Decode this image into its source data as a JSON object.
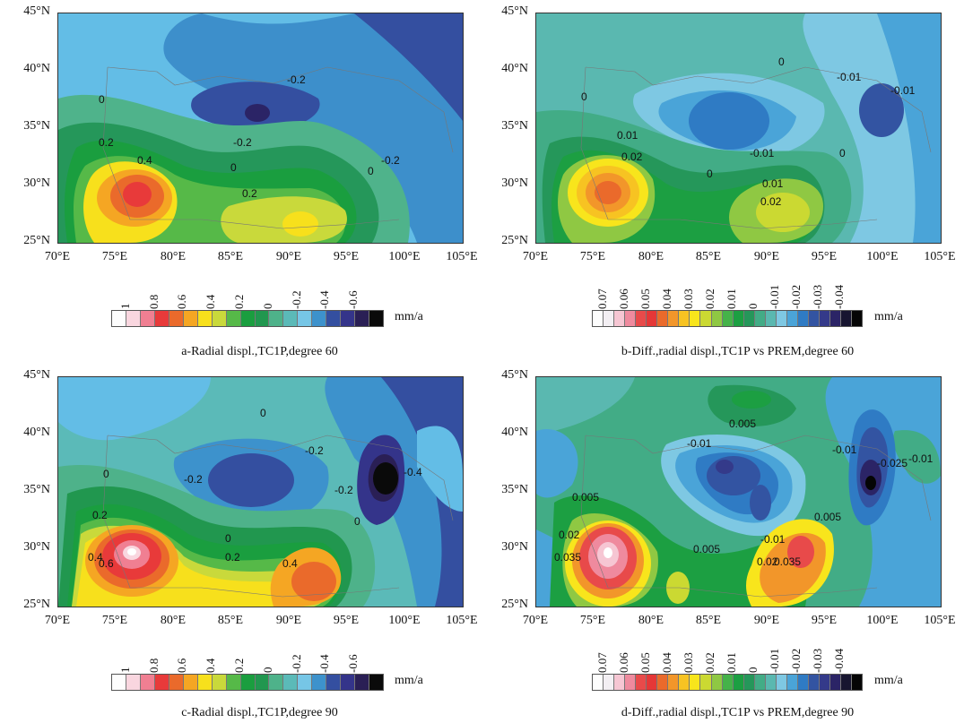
{
  "lat_labels": [
    "45°N",
    "40°N",
    "35°N",
    "30°N",
    "25°N"
  ],
  "lon_labels": [
    "70°E",
    "75°E",
    "80°E",
    "85°E",
    "90°E",
    "95°E",
    "100°E",
    "105°E"
  ],
  "unit": "mm/a",
  "colorbar_a": {
    "labels": [
      "1",
      "0.8",
      "0.6",
      "0.4",
      "0.2",
      "0",
      "-0.2",
      "-0.4",
      "-0.6"
    ],
    "colors": [
      "#fdfdfd",
      "#f9d6df",
      "#f07f92",
      "#e83a3a",
      "#ea6a2b",
      "#f5a623",
      "#f7e01c",
      "#c9d93b",
      "#56b948",
      "#1a9e3f",
      "#21974f",
      "#4eb28a",
      "#5bbab8",
      "#76c6e6",
      "#3d92cc",
      "#344fa0",
      "#34348a",
      "#2a1f55",
      "#0a0a0a"
    ]
  },
  "colorbar_b": {
    "labels": [
      "0.07",
      "0.06",
      "0.05",
      "0.04",
      "0.03",
      "0.02",
      "0.01",
      "0",
      "-0.01",
      "-0.02",
      "-0.03",
      "-0.04"
    ],
    "colors": [
      "#fdfdfd",
      "#f3eff3",
      "#f6c6d3",
      "#ef8a9e",
      "#e84a4a",
      "#e53737",
      "#ea6a2b",
      "#f2962a",
      "#f7c322",
      "#f8e51c",
      "#cbd932",
      "#8fc843",
      "#45b249",
      "#1c9f42",
      "#25975a",
      "#42ac86",
      "#5ab8b0",
      "#7ec8e3",
      "#4aa4d8",
      "#2f7bc4",
      "#3354a2",
      "#343a8a",
      "#2b2466",
      "#171530",
      "#050505"
    ]
  },
  "panels": [
    {
      "caption": "a-Radial displ.,TC1P,degree 60",
      "contour_labels": [
        "-0.2",
        "0",
        "0.2",
        "0.4",
        "-0.2",
        "0",
        "0.2",
        "0",
        "-0.2"
      ]
    },
    {
      "caption": "b-Diff.,radial displ.,TC1P vs PREM,degree 60",
      "contour_labels": [
        "0",
        "0",
        "-0.01",
        "-0.01",
        "0.01",
        "0.02",
        "0",
        "-0.01",
        "0",
        "0.01",
        "0.02"
      ]
    },
    {
      "caption": "c-Radial displ.,TC1P,degree 90",
      "contour_labels": [
        "0",
        "-0.2",
        "0",
        "-0.2",
        "0.2",
        "-0.2",
        "-0.4",
        "0.4",
        "0.6",
        "0",
        "0.2",
        "0.4",
        "0"
      ]
    },
    {
      "caption": "d-Diff.,radial displ.,TC1P vs PREM,degree 90",
      "contour_labels": [
        "0.005",
        "-0.01",
        "-0.01",
        "-0.025",
        "-0.01",
        "0.005",
        "0.02",
        "0.035",
        "0.005",
        "-0.01",
        "0.005",
        "0.02",
        "0.035"
      ]
    }
  ]
}
